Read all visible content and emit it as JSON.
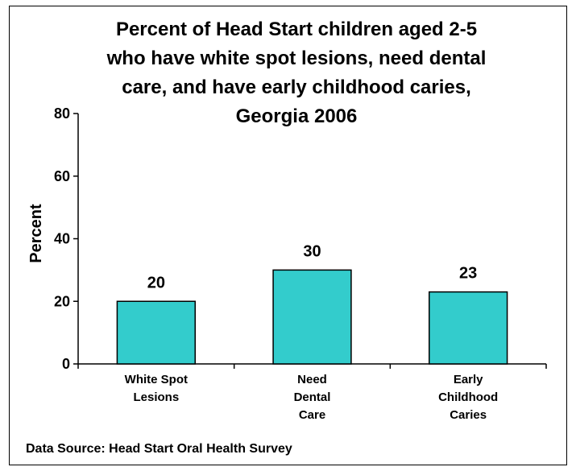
{
  "chart_data": {
    "type": "bar",
    "title": [
      "Percent of Head Start children aged 2-5",
      "who have white spot lesions, need dental",
      "care, and have early childhood caries,",
      "Georgia 2006"
    ],
    "ylabel": "Percent",
    "xlabel": "",
    "ylim": [
      0,
      80
    ],
    "yticks": [
      "0",
      "20",
      "40",
      "60",
      "80"
    ],
    "categories": [
      [
        "White Spot",
        "Lesions"
      ],
      [
        "Need",
        "Dental",
        "Care"
      ],
      [
        "Early",
        "Childhood",
        "Caries"
      ]
    ],
    "values": [
      20,
      30,
      23
    ],
    "data_labels": [
      "20",
      "30",
      "23"
    ],
    "bar_color": "#33CCCC",
    "grid": false,
    "legend": "none"
  },
  "source": "Data Source: Head Start Oral Health Survey"
}
